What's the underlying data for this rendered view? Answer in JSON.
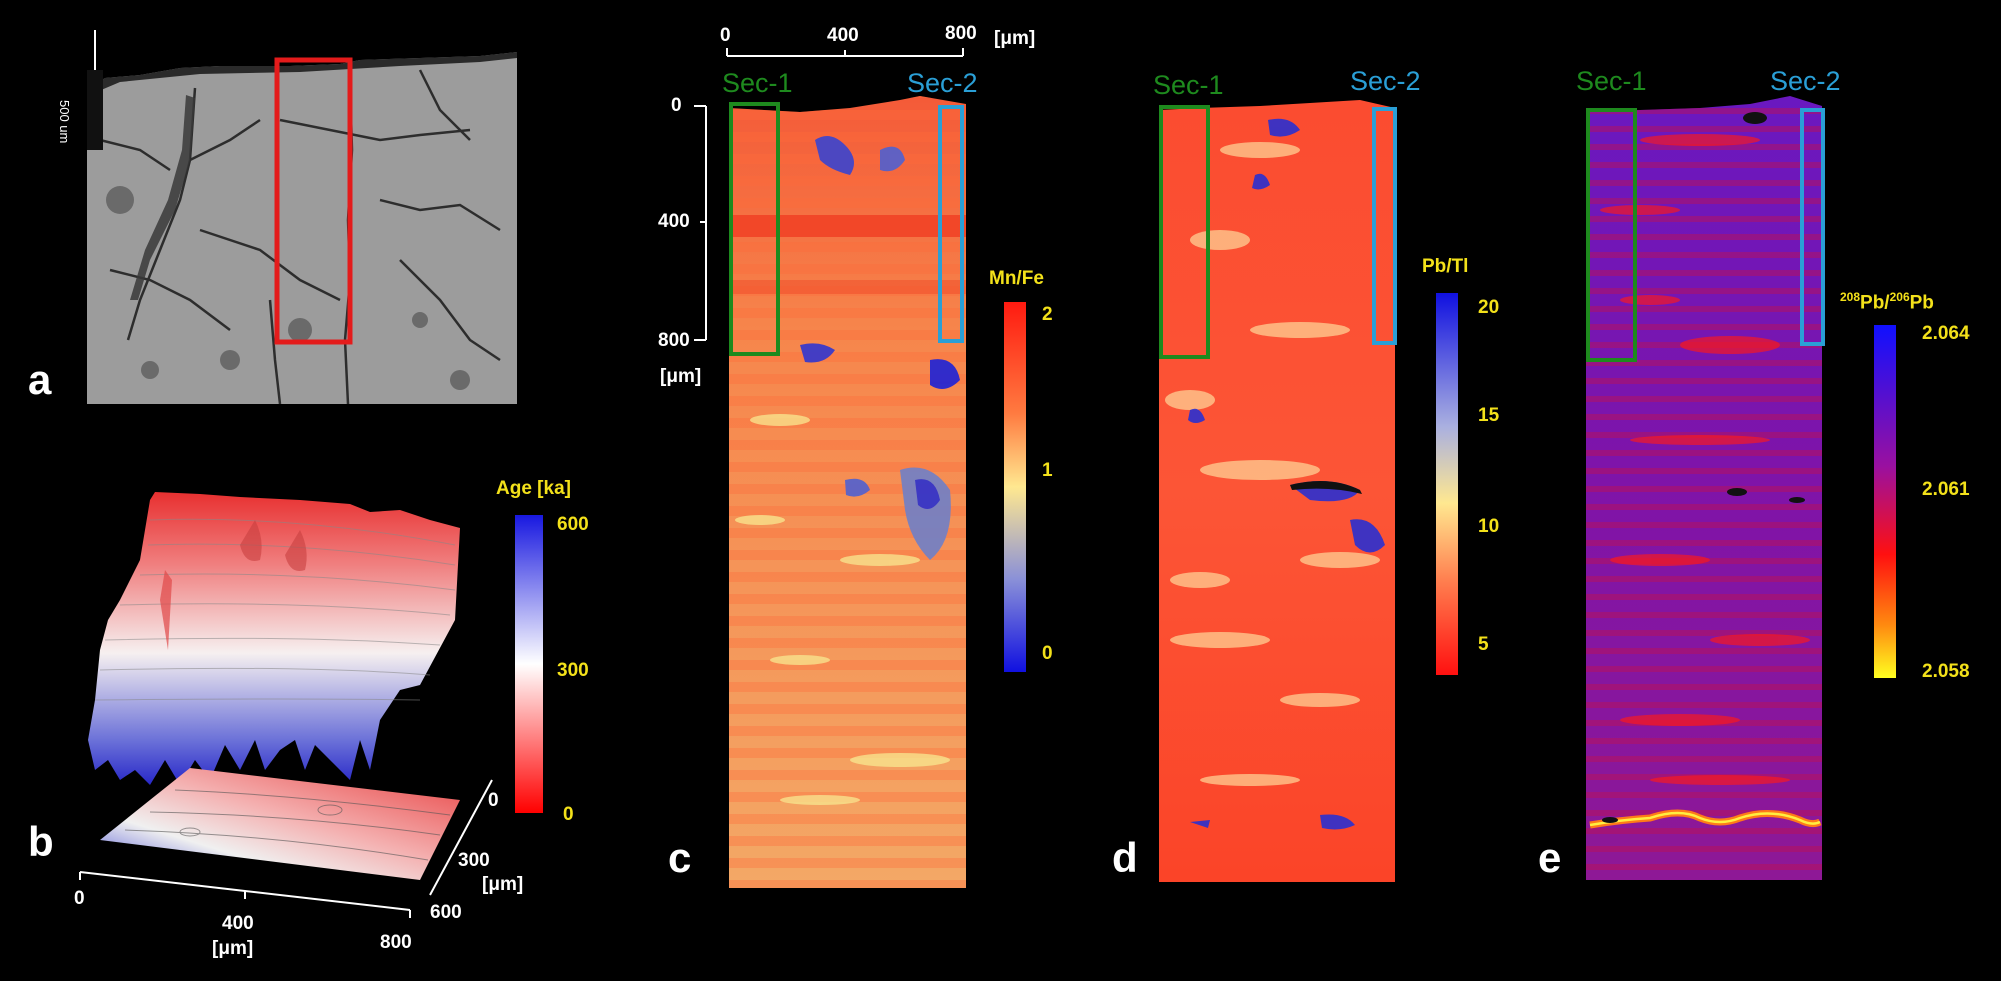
{
  "panels": {
    "a": {
      "letter": "a",
      "scalebar_label": "500 um"
    },
    "b": {
      "letter": "b",
      "colorbar": {
        "title": "Age [ka]",
        "ticks": [
          "600",
          "300",
          "0"
        ]
      },
      "x_axis": {
        "ticks": [
          "0",
          "400",
          "800"
        ],
        "unit": "[μm]"
      },
      "depth_axis": {
        "ticks": [
          "0",
          "300",
          "600"
        ],
        "unit": "[μm]"
      }
    },
    "c": {
      "letter": "c",
      "scale_top": {
        "ticks": [
          "0",
          "400",
          "800"
        ],
        "unit": "[μm]"
      },
      "scale_left": {
        "ticks": [
          "0",
          "400",
          "800"
        ],
        "unit": "[μm]"
      },
      "sec1": "Sec-1",
      "sec2": "Sec-2",
      "colorbar": {
        "title": "Mn/Fe",
        "ticks": [
          "2",
          "1",
          "0"
        ]
      }
    },
    "d": {
      "letter": "d",
      "sec1": "Sec-1",
      "sec2": "Sec-2",
      "colorbar": {
        "title": "Pb/Tl",
        "ticks": [
          "20",
          "15",
          "10",
          "5"
        ]
      }
    },
    "e": {
      "letter": "e",
      "sec1": "Sec-1",
      "sec2": "Sec-2",
      "colorbar": {
        "title_sup1": "208",
        "title_mid1": "Pb/",
        "title_sup2": "206",
        "title_mid2": "Pb",
        "ticks": [
          "2.064",
          "2.061",
          "2.058"
        ]
      }
    }
  },
  "colors": {
    "sec1_box": "#1e8a1e",
    "sec2_box": "#2a9fd6",
    "tick_yellow": "#f3e11a",
    "roi_red": "#e41b1b"
  }
}
